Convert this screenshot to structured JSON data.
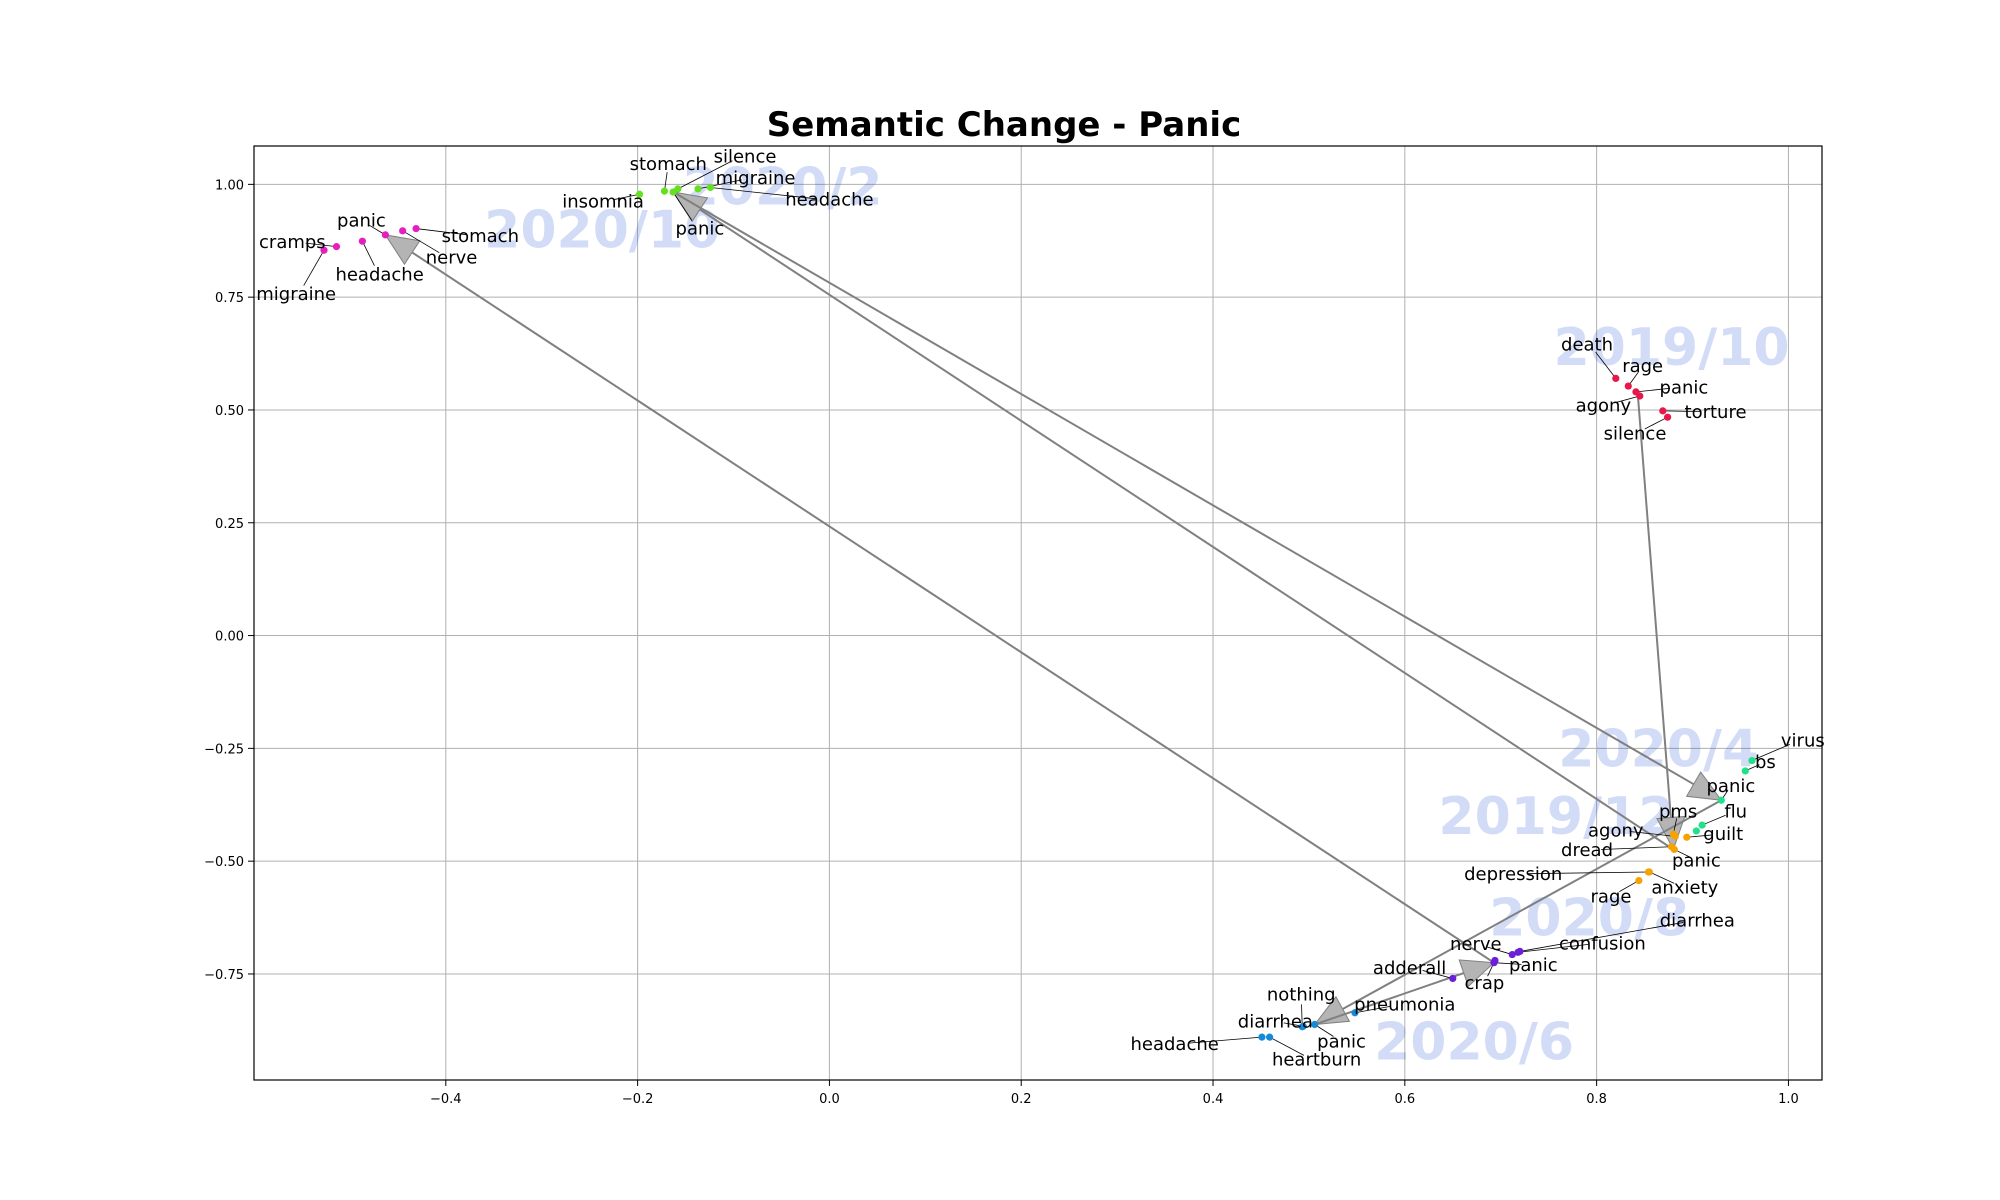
{
  "chart_data": {
    "type": "scatter",
    "title": "Semantic Change - Panic",
    "xlabel": "",
    "ylabel": "",
    "xlim": [
      -0.6,
      1.035
    ],
    "ylim": [
      -0.985,
      1.085
    ],
    "grid": true,
    "xticks": [
      -0.4,
      -0.2,
      0.0,
      0.2,
      0.4,
      0.6,
      0.8,
      1.0
    ],
    "xtick_labels": [
      "−0.4",
      "−0.2",
      "0.0",
      "0.2",
      "0.4",
      "0.6",
      "0.8",
      "1.0"
    ],
    "yticks": [
      1.0,
      0.75,
      0.5,
      0.25,
      0.0,
      -0.25,
      -0.5,
      -0.75
    ],
    "ytick_labels": [
      "1.00",
      "0.75",
      "0.50",
      "0.25",
      "0.00",
      "−0.25",
      "−0.50",
      "−0.75"
    ],
    "groups": [
      {
        "name": "2019/10",
        "color": "#e8174a",
        "watermark_at": [
          0.755,
          0.6
        ],
        "points": [
          {
            "word": "death",
            "x": 0.82,
            "y": 0.57,
            "label_at": [
              0.79,
              0.645
            ]
          },
          {
            "word": "rage",
            "x": 0.833,
            "y": 0.553,
            "label_at": [
              0.848,
              0.597
            ]
          },
          {
            "word": "panic",
            "x": 0.841,
            "y": 0.54,
            "label_at": [
              0.891,
              0.55
            ]
          },
          {
            "word": "agony",
            "x": 0.845,
            "y": 0.531,
            "label_at": [
              0.807,
              0.51
            ]
          },
          {
            "word": "torture",
            "x": 0.869,
            "y": 0.498,
            "label_at": [
              0.924,
              0.496
            ]
          },
          {
            "word": "silence",
            "x": 0.874,
            "y": 0.484,
            "label_at": [
              0.84,
              0.448
            ]
          }
        ]
      },
      {
        "name": "2019/12",
        "color": "#f5a300",
        "watermark_at": [
          0.635,
          -0.44
        ],
        "points": [
          {
            "word": "pms",
            "x": 0.88,
            "y": -0.44,
            "label_at": [
              0.885,
              -0.39
            ]
          },
          {
            "word": "agony",
            "x": 0.882,
            "y": -0.445,
            "label_at": [
              0.82,
              -0.432
            ]
          },
          {
            "word": "guilt",
            "x": 0.894,
            "y": -0.447,
            "label_at": [
              0.932,
              -0.44
            ]
          },
          {
            "word": "dread",
            "x": 0.878,
            "y": -0.468,
            "label_at": [
              0.79,
              -0.475
            ]
          },
          {
            "word": "panic",
            "x": 0.881,
            "y": -0.474,
            "label_at": [
              0.904,
              -0.498
            ]
          },
          {
            "word": "depression",
            "x": 0.854,
            "y": -0.524,
            "label_at": [
              0.713,
              -0.528
            ]
          },
          {
            "word": "anxiety",
            "x": 0.855,
            "y": -0.524,
            "label_at": [
              0.892,
              -0.558
            ]
          },
          {
            "word": "rage",
            "x": 0.844,
            "y": -0.543,
            "label_at": [
              0.815,
              -0.578
            ]
          }
        ]
      },
      {
        "name": "2020/2",
        "color": "#64e020",
        "watermark_at": [
          -0.153,
          0.955
        ],
        "points": [
          {
            "word": "insomnia",
            "x": -0.198,
            "y": 0.978,
            "label_at": [
              -0.236,
              0.962
            ]
          },
          {
            "word": "stomach",
            "x": -0.172,
            "y": 0.985,
            "label_at": [
              -0.168,
              1.045
            ]
          },
          {
            "word": "silence",
            "x": -0.158,
            "y": 0.99,
            "label_at": [
              -0.088,
              1.062
            ]
          },
          {
            "word": "migraine",
            "x": -0.137,
            "y": 0.99,
            "label_at": [
              -0.077,
              1.014
            ]
          },
          {
            "word": "headache",
            "x": -0.124,
            "y": 0.993,
            "label_at": [
              0.0,
              0.966
            ]
          },
          {
            "word": "panic",
            "x": -0.163,
            "y": 0.983,
            "label_at": [
              -0.135,
              0.902
            ]
          }
        ]
      },
      {
        "name": "2020/4",
        "color": "#20e08a",
        "watermark_at": [
          0.76,
          -0.29
        ],
        "points": [
          {
            "word": "virus",
            "x": 0.962,
            "y": -0.277,
            "label_at": [
              1.015,
              -0.233
            ]
          },
          {
            "word": "bs",
            "x": 0.955,
            "y": -0.3,
            "label_at": [
              0.976,
              -0.28
            ]
          },
          {
            "word": "panic",
            "x": 0.93,
            "y": -0.365,
            "label_at": [
              0.94,
              -0.333
            ]
          },
          {
            "word": "flu",
            "x": 0.91,
            "y": -0.42,
            "label_at": [
              0.945,
              -0.39
            ]
          },
          {
            "word": "guilt",
            "x": 0.904,
            "y": -0.433,
            "label_at": [
              0.0,
              0.0
            ]
          }
        ]
      },
      {
        "name": "2020/6",
        "color": "#168ad8",
        "watermark_at": [
          0.568,
          -0.94
        ],
        "points": [
          {
            "word": "nothing",
            "x": 0.493,
            "y": -0.867,
            "label_at": [
              0.492,
              -0.796
            ]
          },
          {
            "word": "diarrhea",
            "x": 0.494,
            "y": -0.866,
            "label_at": [
              0.465,
              -0.855
            ]
          },
          {
            "word": "panic",
            "x": 0.506,
            "y": -0.862,
            "label_at": [
              0.534,
              -0.9
            ]
          },
          {
            "word": "pneumonia",
            "x": 0.548,
            "y": -0.836,
            "label_at": [
              0.6,
              -0.818
            ]
          },
          {
            "word": "headache",
            "x": 0.451,
            "y": -0.89,
            "label_at": [
              0.36,
              -0.905
            ]
          },
          {
            "word": "heartburn",
            "x": 0.459,
            "y": -0.89,
            "label_at": [
              0.508,
              -0.94
            ]
          }
        ]
      },
      {
        "name": "2020/8",
        "color": "#6a1fd8",
        "watermark_at": [
          0.688,
          -0.665
        ],
        "points": [
          {
            "word": "nerve",
            "x": 0.712,
            "y": -0.707,
            "label_at": [
              0.674,
              -0.684
            ]
          },
          {
            "word": "confusion",
            "x": 0.718,
            "y": -0.702,
            "label_at": [
              0.806,
              -0.682
            ]
          },
          {
            "word": "diarrhea",
            "x": 0.72,
            "y": -0.7,
            "label_at": [
              0.905,
              -0.632
            ]
          },
          {
            "word": "panic",
            "x": 0.693,
            "y": -0.725,
            "label_at": [
              0.734,
              -0.73
            ]
          },
          {
            "word": "crap",
            "x": 0.694,
            "y": -0.72,
            "label_at": [
              0.683,
              -0.77
            ]
          },
          {
            "word": "adderall",
            "x": 0.65,
            "y": -0.76,
            "label_at": [
              0.605,
              -0.737
            ]
          }
        ]
      },
      {
        "name": "2020/10",
        "color": "#e61ec0",
        "watermark_at": [
          -0.36,
          0.86
        ],
        "points": [
          {
            "word": "panic",
            "x": -0.463,
            "y": 0.888,
            "label_at": [
              -0.488,
              0.92
            ]
          },
          {
            "word": "stomach",
            "x": -0.431,
            "y": 0.902,
            "label_at": [
              -0.364,
              0.886
            ]
          },
          {
            "word": "nerve",
            "x": -0.445,
            "y": 0.897,
            "label_at": [
              -0.394,
              0.838
            ]
          },
          {
            "word": "headache",
            "x": -0.487,
            "y": 0.874,
            "label_at": [
              -0.469,
              0.8
            ]
          },
          {
            "word": "cramps",
            "x": -0.514,
            "y": 0.862,
            "label_at": [
              -0.56,
              0.872
            ]
          },
          {
            "word": "migraine",
            "x": -0.527,
            "y": 0.854,
            "label_at": [
              -0.556,
              0.757
            ]
          }
        ]
      }
    ],
    "trajectory_order": [
      "2019/10",
      "2019/12",
      "2020/2",
      "2020/4",
      "2020/6",
      "2020/8",
      "2020/10"
    ],
    "trajectory_points": [
      {
        "x": 0.843,
        "y": 0.533
      },
      {
        "x": 0.88,
        "y": -0.474
      },
      {
        "x": -0.163,
        "y": 0.983
      },
      {
        "x": 0.93,
        "y": -0.365
      },
      {
        "x": 0.506,
        "y": -0.862
      },
      {
        "x": 0.693,
        "y": -0.725
      },
      {
        "x": -0.463,
        "y": 0.888
      }
    ]
  }
}
